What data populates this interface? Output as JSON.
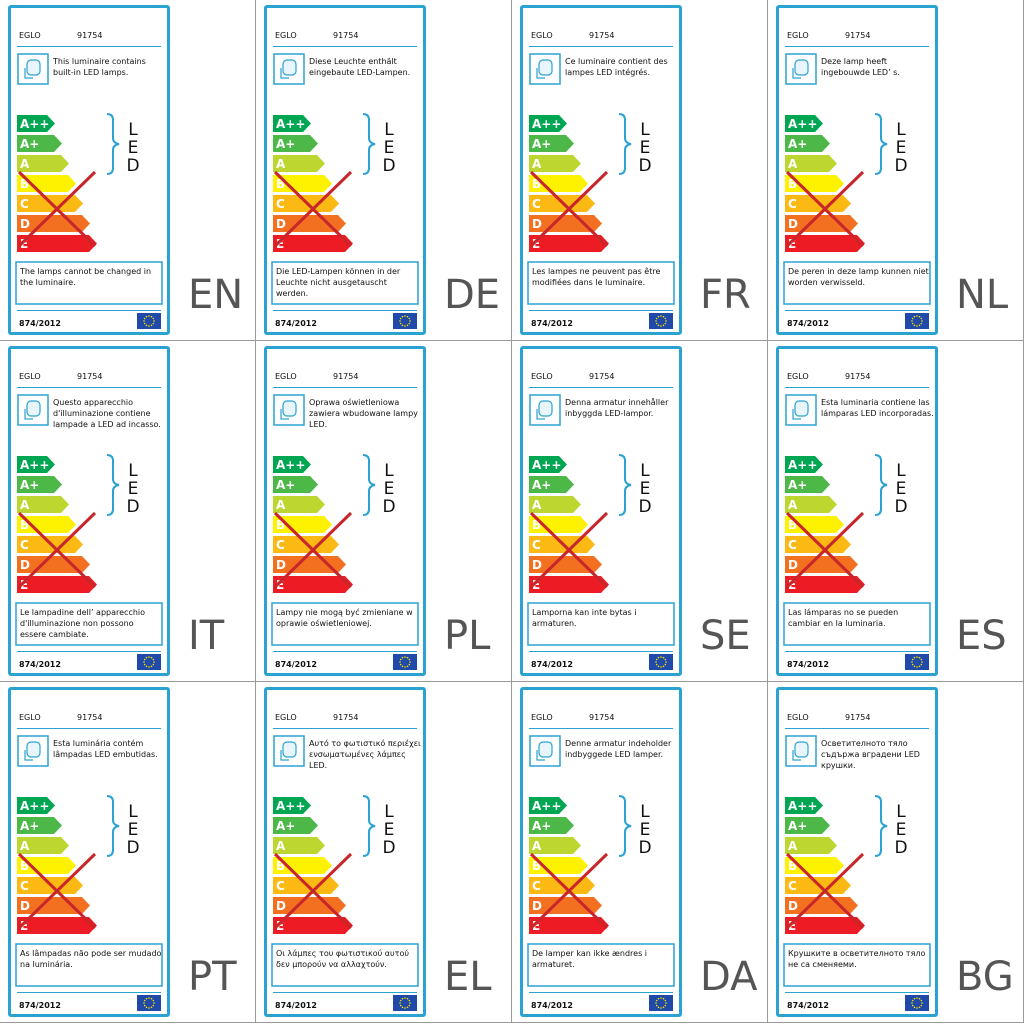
{
  "scale": {
    "classes": [
      "A++",
      "A+",
      "A",
      "B",
      "C",
      "D",
      "E"
    ],
    "led": "LED"
  },
  "labels": [
    {
      "brand": "EGLO",
      "model": "91754",
      "description": "This luminaire contains built-in LED lamps.",
      "note": "The lamps cannot be changed in the luminaire.",
      "regulation": "874/2012",
      "language": "EN"
    },
    {
      "brand": "EGLO",
      "model": "91754",
      "description": "Diese Leuchte enthält eingebaute LED-Lampen.",
      "note": "Die LED-Lampen können in der Leuchte nicht ausgetauscht werden.",
      "regulation": "874/2012",
      "language": "DE"
    },
    {
      "brand": "EGLO",
      "model": "91754",
      "description": "Ce luminaire contient des lampes LED intégrés.",
      "note": "Les lampes ne peuvent pas être modifiées dans le luminaire.",
      "regulation": "874/2012",
      "language": "FR"
    },
    {
      "brand": "EGLO",
      "model": "91754",
      "description": "Deze lamp heeft ingebouwde LED’ s.",
      "note": "De peren in deze lamp kunnen niet worden verwisseld.",
      "regulation": "874/2012",
      "language": "NL"
    },
    {
      "brand": "EGLO",
      "model": "91754",
      "description": "Questo apparecchio d'illuminazione contiene lampade a LED ad incasso.",
      "note": "Le lampadine dell’ apparecchio d'illuminazione non possono essere cambiate.",
      "regulation": "874/2012",
      "language": "IT"
    },
    {
      "brand": "EGLO",
      "model": "91754",
      "description": "Oprawa oświetleniowa zawiera wbudowane lampy LED.",
      "note": "Lampy nie mogą być zmieniane w oprawie oświetleniowej.",
      "regulation": "874/2012",
      "language": "PL"
    },
    {
      "brand": "EGLO",
      "model": "91754",
      "description": "Denna armatur innehåller inbyggda LED-lampor.",
      "note": "Lamporna kan inte bytas i armaturen.",
      "regulation": "874/2012",
      "language": "SE"
    },
    {
      "brand": "EGLO",
      "model": "91754",
      "description": "Esta luminaria contiene las lámparas LED incorporadas.",
      "note": "Las lámparas no se pueden cambiar en la luminaria.",
      "regulation": "874/2012",
      "language": "ES"
    },
    {
      "brand": "EGLO",
      "model": "91754",
      "description": "Esta luminária contém lâmpadas LED embutidas.",
      "note": "As lâmpadas não pode ser mudado na luminária.",
      "regulation": "874/2012",
      "language": "PT"
    },
    {
      "brand": "EGLO",
      "model": "91754",
      "description": "Αυτό το φωτιστικό περιέχει ενσωματωμένες λάμπες LED.",
      "note": "Οι λάμπες του φωτιστικού αυτού δεν μπορούν να αλλαχτούν.",
      "regulation": "874/2012",
      "language": "EL"
    },
    {
      "brand": "EGLO",
      "model": "91754",
      "description": "Denne armatur indeholder indbyggede LED lamper.",
      "note": "De lamper kan ikke ændres i armaturet.",
      "regulation": "874/2012",
      "language": "DA"
    },
    {
      "brand": "EGLO",
      "model": "91754",
      "description": "Осветителното тяло съдържа вградени LED крушки.",
      "note": "Крушките в осветителното тяло не са сменяеми.",
      "regulation": "874/2012",
      "language": "BG"
    }
  ]
}
